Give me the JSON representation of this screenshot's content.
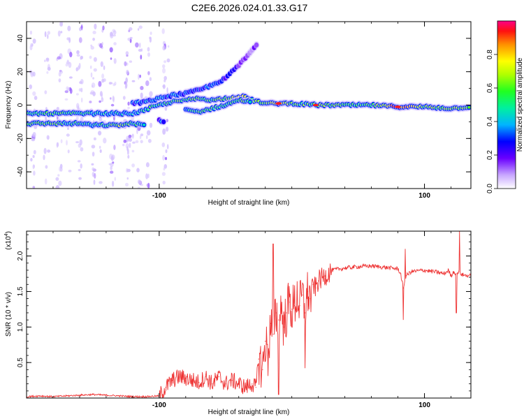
{
  "figure": {
    "title": "C2E6.2026.024.01.33.G17"
  },
  "chart_data": [
    {
      "type": "heatmap",
      "title": "C2E6.2026.024.01.33.G17",
      "xlabel": "Height of straight line (km)",
      "ylabel": "Frequency (Hz)",
      "xlim": [
        -200,
        135
      ],
      "ylim": [
        -50,
        50
      ],
      "xticks": [
        -100,
        100
      ],
      "xtick_labels": [
        "-100",
        "100"
      ],
      "yticks": [
        -40,
        -20,
        0,
        20,
        40
      ],
      "ytick_labels": [
        "-40",
        "-20",
        "0",
        "20",
        "40"
      ],
      "colorbar": {
        "label": "Normalized spectral amplitude",
        "range": [
          0,
          1
        ],
        "ticks": [
          0,
          0.2,
          0.4,
          0.6,
          0.8
        ],
        "tick_labels": [
          "0.0",
          "0.2",
          "0.4",
          "0.6",
          "0.8"
        ],
        "colormap": "rainbow",
        "colors": [
          "#ffffff",
          "#b98cff",
          "#6600ff",
          "#0000ff",
          "#00c8ff",
          "#00ff80",
          "#80ff00",
          "#ffff00",
          "#ff8000",
          "#ff0000",
          "#ff00aa"
        ]
      },
      "tracks": [
        {
          "name": "main-upper",
          "points": [
            [
              -200,
              -5
            ],
            [
              -180,
              -5
            ],
            [
              -160,
              -5
            ],
            [
              -140,
              -5
            ],
            [
              -120,
              -5
            ],
            [
              -110,
              -3
            ],
            [
              -105,
              -1
            ],
            [
              -100,
              0
            ],
            [
              -90,
              2
            ],
            [
              -80,
              3
            ],
            [
              -70,
              4
            ],
            [
              -60,
              3
            ],
            [
              -50,
              4
            ],
            [
              -40,
              5
            ],
            [
              -35,
              5
            ],
            [
              -30,
              3
            ],
            [
              -25,
              2
            ],
            [
              -20,
              1
            ],
            [
              -10,
              1
            ],
            [
              0,
              1
            ],
            [
              20,
              0
            ],
            [
              40,
              0
            ],
            [
              60,
              0
            ],
            [
              80,
              -1
            ],
            [
              100,
              -1
            ],
            [
              120,
              -2
            ],
            [
              135,
              -1
            ]
          ],
          "amplitude": [
            0.55,
            0.6,
            0.5,
            0.45,
            0.4,
            0.5,
            0.55,
            0.5,
            0.55,
            0.6,
            0.6,
            0.55,
            0.65,
            0.7,
            0.75,
            0.6,
            0.6,
            0.55,
            0.9,
            0.55,
            0.6,
            0.6,
            0.55,
            0.9,
            0.6,
            0.6,
            0.7
          ]
        },
        {
          "name": "main-lower",
          "points": [
            [
              -200,
              -11
            ],
            [
              -180,
              -11
            ],
            [
              -170,
              -11
            ],
            [
              -160,
              -11
            ],
            [
              -150,
              -12
            ],
            [
              -140,
              -12
            ],
            [
              -130,
              -12
            ],
            [
              -120,
              -11
            ],
            [
              -110,
              -12
            ]
          ],
          "amplitude": [
            0.55,
            0.6,
            0.5,
            0.5,
            0.45,
            0.5,
            0.7,
            0.5,
            0.5
          ]
        },
        {
          "name": "middle-branch",
          "points": [
            [
              -80,
              -3
            ],
            [
              -70,
              -4
            ],
            [
              -60,
              -2
            ],
            [
              -50,
              0
            ],
            [
              -40,
              3
            ],
            [
              -30,
              2
            ]
          ],
          "amplitude": [
            0.4,
            0.55,
            0.5,
            0.55,
            0.6,
            0.5
          ]
        },
        {
          "name": "upper-branch",
          "points": [
            [
              -120,
              1
            ],
            [
              -110,
              2
            ],
            [
              -100,
              4
            ],
            [
              -90,
              6
            ],
            [
              -80,
              7
            ],
            [
              -70,
              9
            ],
            [
              -60,
              12
            ],
            [
              -50,
              16
            ],
            [
              -45,
              20
            ],
            [
              -40,
              24
            ],
            [
              -35,
              28
            ],
            [
              -30,
              33
            ],
            [
              -25,
              37
            ]
          ],
          "amplitude": [
            0.3,
            0.35,
            0.35,
            0.35,
            0.3,
            0.3,
            0.3,
            0.25,
            0.25,
            0.2,
            0.15,
            0.15,
            0.1
          ]
        },
        {
          "name": "lower-blob",
          "points": [
            [
              -100,
              -9
            ],
            [
              -95,
              -10
            ]
          ],
          "amplitude": [
            0.3,
            0.25
          ]
        }
      ]
    },
    {
      "type": "line",
      "title": "",
      "xlabel": "Height of straight line (km)",
      "ylabel": "SNR (10 * v/v)",
      "yscale_label": "(x10",
      "yscale_exp": "4",
      "xlim": [
        -200,
        135
      ],
      "ylim": [
        0,
        2.35
      ],
      "xticks": [
        -100,
        100
      ],
      "xtick_labels": [
        "-100",
        "100"
      ],
      "yticks": [
        0.5,
        1.0,
        1.5,
        2.0
      ],
      "ytick_labels": [
        "0.5",
        "1.0",
        "1.5",
        "2.0"
      ],
      "color": "#ee3333",
      "series": [
        {
          "name": "SNR",
          "x": [
            -200,
            -190,
            -180,
            -170,
            -160,
            -150,
            -140,
            -130,
            -120,
            -110,
            -100,
            -95,
            -90,
            -85,
            -80,
            -75,
            -70,
            -65,
            -60,
            -55,
            -50,
            -45,
            -40,
            -35,
            -30,
            -27,
            -25,
            -22,
            -20,
            -18,
            -16,
            -14,
            -12,
            -10,
            -8,
            -6,
            -4,
            -2,
            0,
            2,
            4,
            6,
            8,
            10,
            12,
            14,
            16,
            18,
            20,
            25,
            30,
            40,
            50,
            60,
            70,
            80,
            82,
            84,
            86,
            90,
            100,
            110,
            115,
            118,
            120,
            122,
            124,
            126,
            128,
            130,
            135
          ],
          "y": [
            0.02,
            0.03,
            0.02,
            0.03,
            0.04,
            0.05,
            0.04,
            0.03,
            0.02,
            0.02,
            0.03,
            0.15,
            0.25,
            0.3,
            0.28,
            0.25,
            0.22,
            0.3,
            0.2,
            0.3,
            0.2,
            0.25,
            0.2,
            0.15,
            0.2,
            0.15,
            0.55,
            0.4,
            0.8,
            0.6,
            1.05,
            0.9,
            1.2,
            1.1,
            1.3,
            1.0,
            1.2,
            1.35,
            1.25,
            1.3,
            1.45,
            1.3,
            1.45,
            1.2,
            1.5,
            1.4,
            1.6,
            1.55,
            1.65,
            1.72,
            1.8,
            1.83,
            1.85,
            1.86,
            1.84,
            1.82,
            1.75,
            1.55,
            1.72,
            1.78,
            1.8,
            1.77,
            1.75,
            1.8,
            1.72,
            1.78,
            1.75,
            1.78,
            1.74,
            1.73,
            1.72
          ]
        }
      ]
    }
  ]
}
